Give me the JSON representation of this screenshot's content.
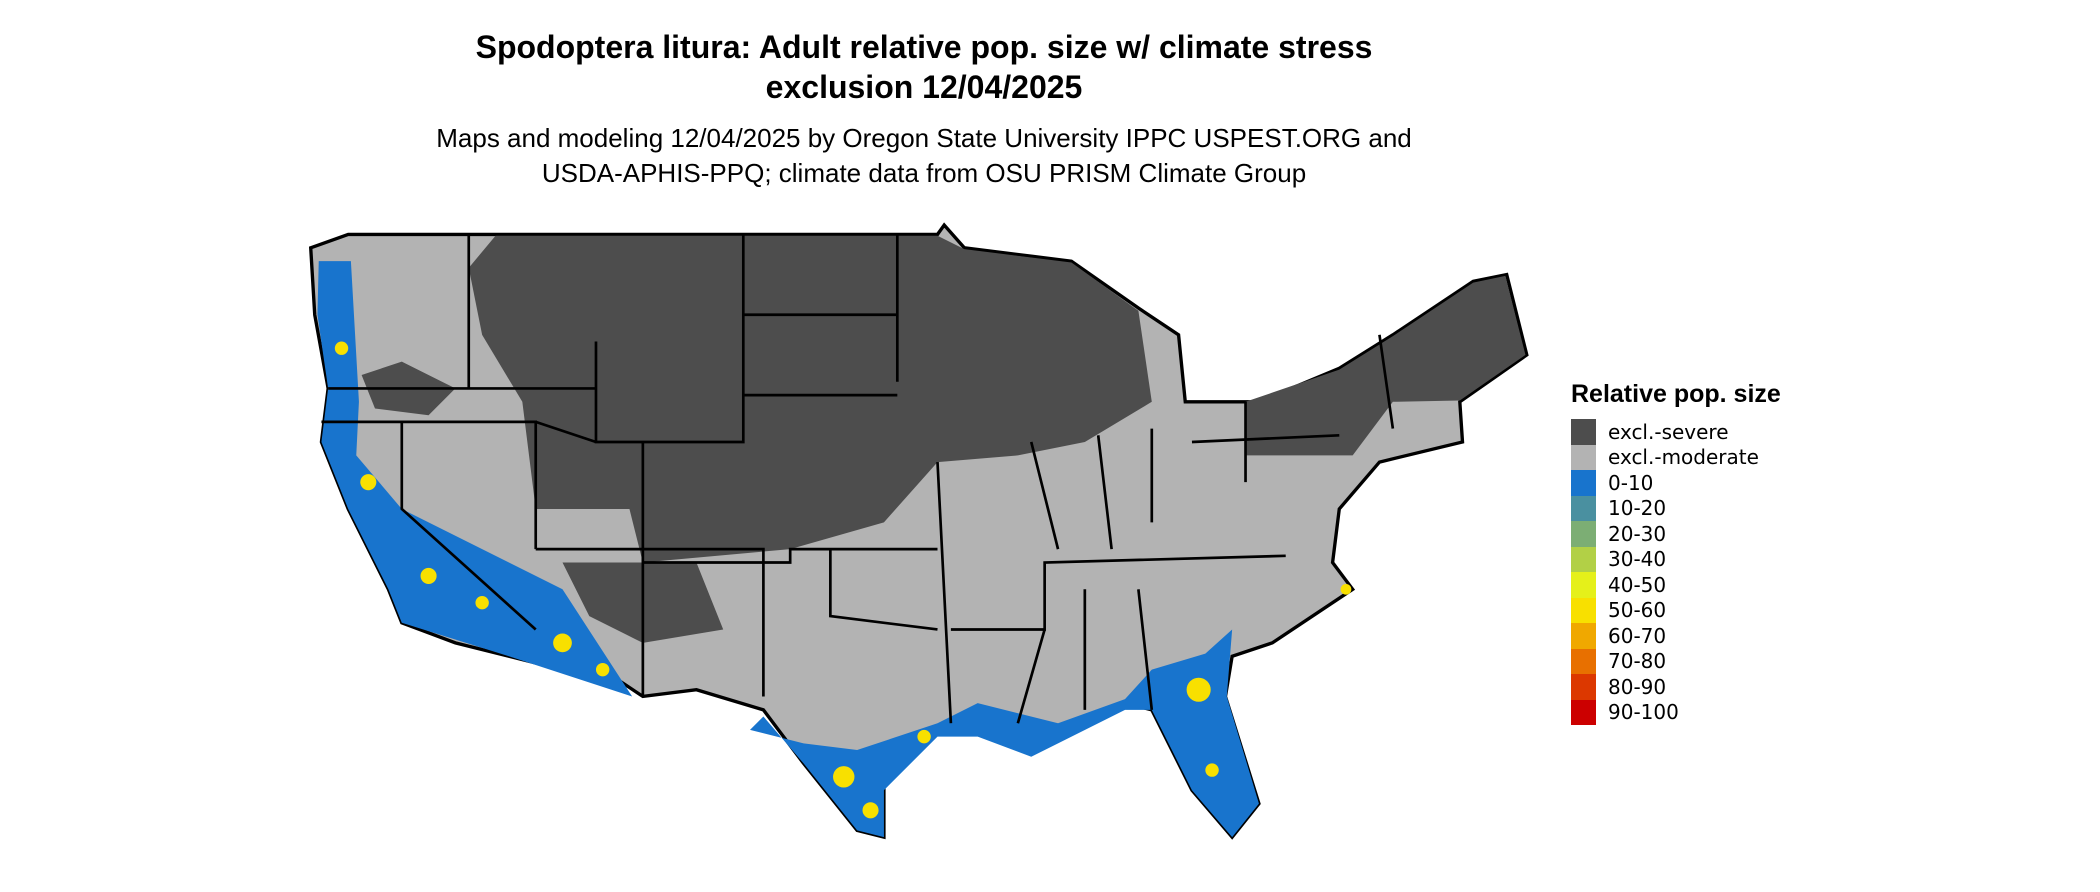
{
  "title": {
    "line1": "Spodoptera litura: Adult relative pop. size w/ climate stress",
    "line2": "exclusion 12/04/2025"
  },
  "subtitle": {
    "line1": "Maps and modeling 12/04/2025 by Oregon State University IPPC USPEST.ORG and",
    "line2": "USDA-APHIS-PPQ; climate data from OSU PRISM Climate Group"
  },
  "legend": {
    "title": "Relative pop. size",
    "items": [
      {
        "label": "excl.-severe",
        "color": "#4d4d4d"
      },
      {
        "label": "excl.-moderate",
        "color": "#b3b3b3"
      },
      {
        "label": "0-10",
        "color": "#1874cd"
      },
      {
        "label": "10-20",
        "color": "#4a90a0"
      },
      {
        "label": "20-30",
        "color": "#7cae74"
      },
      {
        "label": "30-40",
        "color": "#b2d046"
      },
      {
        "label": "40-50",
        "color": "#e5f01a"
      },
      {
        "label": "50-60",
        "color": "#f8e000"
      },
      {
        "label": "60-70",
        "color": "#f0a800"
      },
      {
        "label": "70-80",
        "color": "#e87000"
      },
      {
        "label": "80-90",
        "color": "#dc3800"
      },
      {
        "label": "90-100",
        "color": "#cc0000"
      }
    ]
  }
}
